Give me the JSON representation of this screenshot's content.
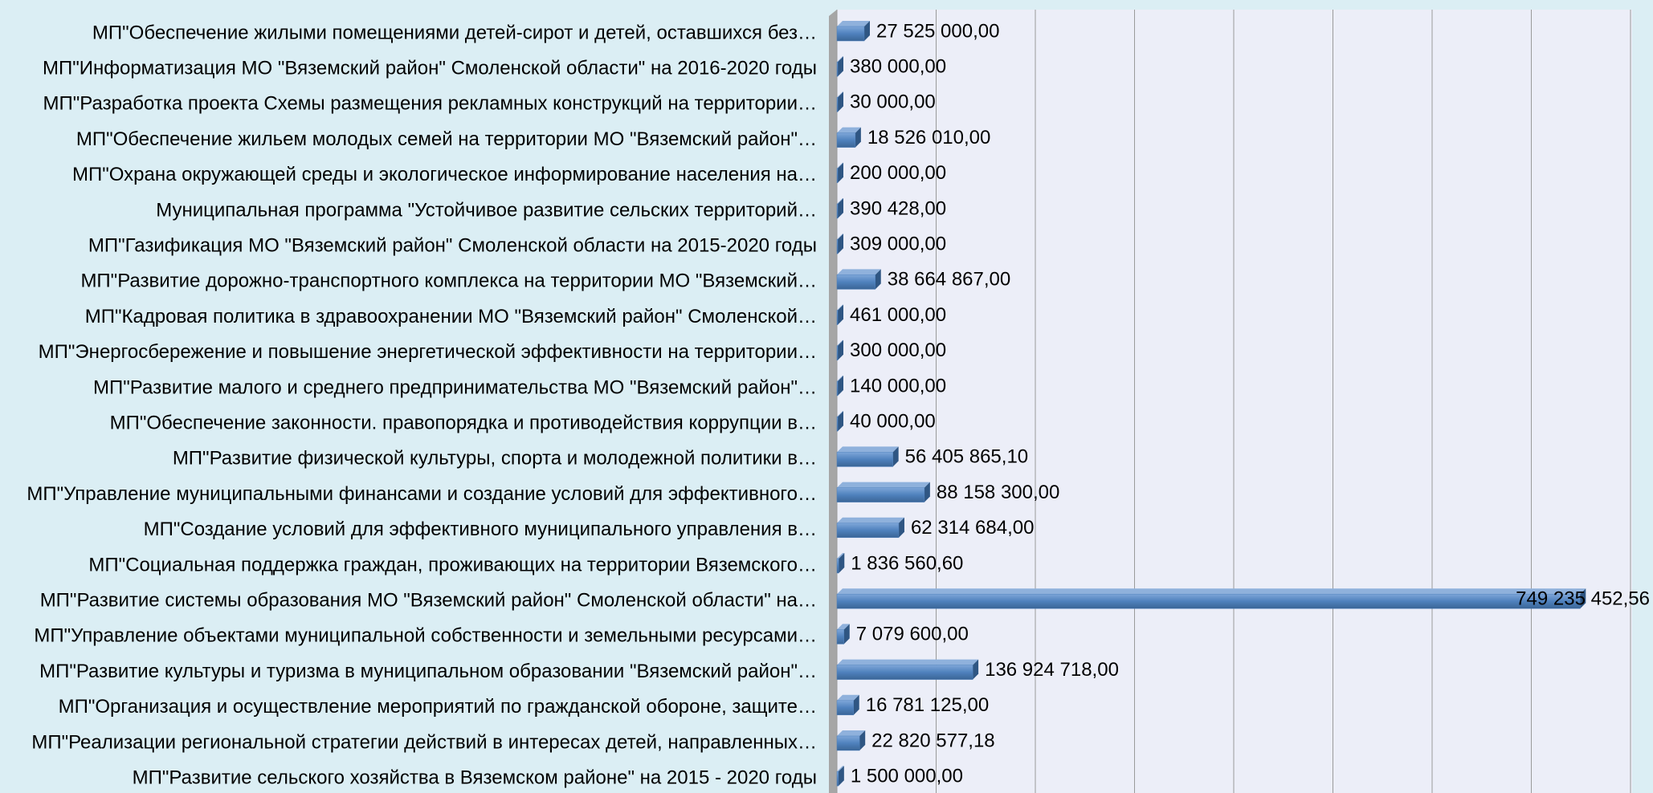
{
  "chart_data": {
    "type": "bar",
    "orientation": "horizontal",
    "categories": [
      "МП\"Обеспечение жилыми помещениями детей-сирот и детей, оставшихся без…",
      "МП\"Информатизация МО \"Вяземский район\" Смоленской области\" на 2016-2020 годы",
      "МП\"Разработка проекта Схемы размещения рекламных конструкций на территории…",
      "МП\"Обеспечение жильем молодых семей на территории МО \"Вяземский район\"…",
      "МП\"Охрана окружающей среды и экологическое информирование населения на…",
      "Муниципальная программа \"Устойчивое развитие сельских территорий…",
      "МП\"Газификация МО \"Вяземский район\" Смоленской области на 2015-2020 годы",
      "МП\"Развитие дорожно-транспортного комплекса на территории МО \"Вяземский…",
      "МП\"Кадровая политика в здравоохранении МО \"Вяземский район\" Смоленской…",
      "МП\"Энергосбережение и повышение энергетической эффективности на территории…",
      "МП\"Развитие малого и среднего предпринимательства МО \"Вяземский район\"…",
      "МП\"Обеспечение законности. правопорядка и противодействия коррупции в…",
      "МП\"Развитие физической культуры, спорта и молодежной политики в…",
      "МП\"Управление муниципальными финансами и создание условий для эффективного…",
      "МП\"Создание условий для эффективного муниципального управления в…",
      "МП\"Социальная поддержка граждан, проживающих на территории Вяземского…",
      "МП\"Развитие системы образования МО \"Вяземский район\" Смоленской области\" на…",
      "МП\"Управление объектами муниципальной собственности и земельными ресурсами…",
      "МП\"Развитие культуры и туризма в муниципальном образовании \"Вяземский район\"…",
      "МП\"Организация и осуществление мероприятий по гражданской обороне, защите…",
      "МП\"Реализации региональной стратегии действий в интересах детей, направленных…",
      "МП\"Развитие сельского хозяйства в Вяземском районе\" на 2015 - 2020 годы"
    ],
    "values": [
      27525000,
      380000,
      30000,
      18526010,
      200000,
      390428,
      309000,
      38664867,
      461000,
      300000,
      140000,
      40000,
      56405865.1,
      88158300,
      62314684,
      1836560.6,
      749235452.56,
      7079600,
      136924718,
      16781125,
      22820577.18,
      1500000
    ],
    "value_labels": [
      "27 525 000,00",
      "380 000,00",
      "30 000,00",
      "18 526 010,00",
      "200 000,00",
      "390 428,00",
      "309 000,00",
      "38 664 867,00",
      "461 000,00",
      "300 000,00",
      "140 000,00",
      "40 000,00",
      "56 405 865,10",
      "88 158 300,00",
      "62 314 684,00",
      "1 836 560,60",
      "749 235 452,56",
      "7 079 600,00",
      "136 924 718,00",
      "16 781 125,00",
      "22 820 577,18",
      "1 500 000,00"
    ],
    "color": "#4f81bd",
    "xlim": [
      0,
      800000000
    ],
    "xticks": [
      0,
      100000000,
      200000000,
      300000000,
      400000000,
      500000000,
      600000000,
      700000000,
      800000000
    ],
    "grid": true
  }
}
